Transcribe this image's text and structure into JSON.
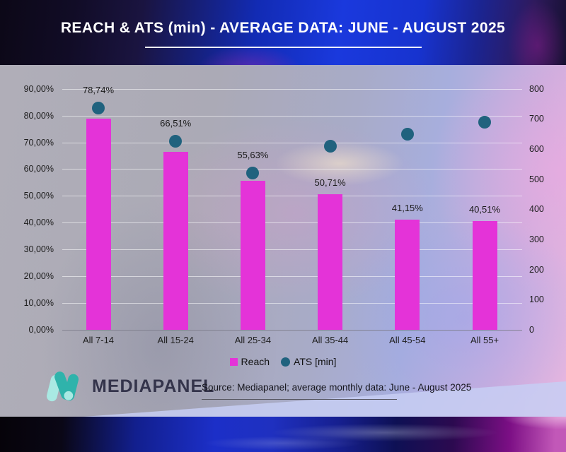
{
  "header": {
    "title": "REACH & ATS (min) - AVERAGE DATA: JUNE - AUGUST 2025"
  },
  "chart_data": {
    "type": "bar",
    "title": "REACH & ATS (min) - AVERAGE DATA: JUNE - AUGUST 2025",
    "categories": [
      "All 7-14",
      "All 15-24",
      "All 25-34",
      "All 35-44",
      "All 45-54",
      "All 55+"
    ],
    "series": [
      {
        "name": "Reach",
        "type": "bar",
        "unit": "%",
        "axis": "left",
        "color": "#e433d8",
        "values": [
          78.74,
          66.51,
          55.63,
          50.71,
          41.15,
          40.51
        ],
        "labels": [
          "78,74%",
          "66,51%",
          "55,63%",
          "50,71%",
          "41,15%",
          "40,51%"
        ]
      },
      {
        "name": "ATS [min]",
        "type": "scatter",
        "unit": "min",
        "axis": "right",
        "color": "#20627e",
        "values": [
          735,
          625,
          520,
          610,
          650,
          690
        ]
      }
    ],
    "left_axis": {
      "min": 0,
      "max": 90,
      "ticks": [
        "0,00%",
        "10,00%",
        "20,00%",
        "30,00%",
        "40,00%",
        "50,00%",
        "60,00%",
        "70,00%",
        "80,00%",
        "90,00%"
      ]
    },
    "right_axis": {
      "min": 0,
      "max": 800,
      "ticks": [
        "0",
        "100",
        "200",
        "300",
        "400",
        "500",
        "600",
        "700",
        "800"
      ]
    },
    "legend": [
      {
        "label": "Reach",
        "swatch": "square"
      },
      {
        "label": "ATS [min]",
        "swatch": "dot"
      }
    ],
    "legend_position": "bottom",
    "grid": true
  },
  "footer": {
    "brand": "MEDIAPANEL",
    "source": "Source: Mediapanel; average monthly data: June - August 2025"
  },
  "colors": {
    "bar": "#e433d8",
    "dot": "#20627e",
    "header_blue": "#1a39dd",
    "logo_teal": "#2fb3ab",
    "logo_cyan": "#a9e9e3"
  }
}
